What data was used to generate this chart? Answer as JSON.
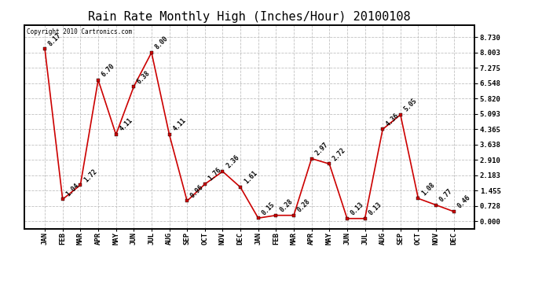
{
  "title": "Rain Rate Monthly High (Inches/Hour) 20100108",
  "copyright": "Copyright 2010 Cartronics.com",
  "labels": [
    "JAN",
    "FEB",
    "MAR",
    "APR",
    "MAY",
    "JUN",
    "JUL",
    "AUG",
    "SEP",
    "OCT",
    "NOV",
    "DEC",
    "JAN",
    "FEB",
    "MAR",
    "APR",
    "MAY",
    "JUN",
    "JUL",
    "AUG",
    "SEP",
    "OCT",
    "NOV",
    "DEC"
  ],
  "values": [
    8.17,
    1.04,
    1.72,
    6.7,
    4.11,
    6.38,
    8.0,
    4.11,
    0.96,
    1.76,
    2.36,
    1.61,
    0.15,
    0.28,
    0.28,
    2.97,
    2.72,
    0.13,
    0.13,
    4.36,
    5.05,
    1.08,
    0.77,
    0.46
  ],
  "line_color": "#cc0000",
  "bg_color": "#ffffff",
  "grid_color": "#bbbbbb",
  "yticks": [
    0.0,
    0.728,
    1.455,
    2.183,
    2.91,
    3.638,
    4.365,
    5.093,
    5.82,
    6.548,
    7.275,
    8.003,
    8.73
  ],
  "ylim": [
    -0.35,
    9.3
  ],
  "title_fontsize": 11,
  "tick_fontsize": 6.5,
  "annot_fontsize": 5.8,
  "copyright_fontsize": 5.5
}
